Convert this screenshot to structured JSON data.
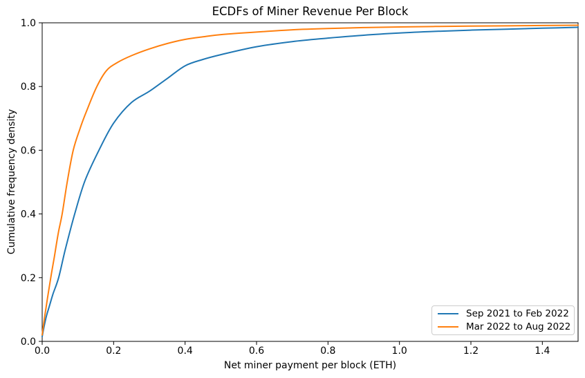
{
  "figure": {
    "title": "ECDFs of Miner Revenue Per Block"
  },
  "chart_data": {
    "type": "line",
    "title": "ECDFs of Miner Revenue Per Block",
    "xlabel": "Net miner payment per block (ETH)",
    "ylabel": "Cumulative frequency density",
    "xlim": [
      0.0,
      1.5
    ],
    "ylim": [
      0.0,
      1.0
    ],
    "x_ticks": [
      "0.0",
      "0.2",
      "0.4",
      "0.6",
      "0.8",
      "1.0",
      "1.2",
      "1.4"
    ],
    "y_ticks": [
      "0.0",
      "0.2",
      "0.4",
      "0.6",
      "0.8",
      "1.0"
    ],
    "grid": false,
    "background": "#ffffff",
    "legend": {
      "position": "lower right",
      "entries": [
        "Sep 2021 to Feb 2022",
        "Mar 2022 to Aug 2022"
      ]
    },
    "series": [
      {
        "name": "Sep 2021 to Feb 2022",
        "color": "#1f77b4",
        "x": [
          0.0,
          0.005,
          0.012,
          0.02,
          0.03,
          0.046,
          0.065,
          0.091,
          0.12,
          0.159,
          0.2,
          0.25,
          0.3,
          0.35,
          0.4,
          0.45,
          0.5,
          0.6,
          0.7,
          0.8,
          0.9,
          1.0,
          1.1,
          1.2,
          1.3,
          1.4,
          1.5
        ],
        "y": [
          0.015,
          0.045,
          0.08,
          0.11,
          0.148,
          0.2,
          0.29,
          0.4,
          0.505,
          0.6,
          0.685,
          0.75,
          0.785,
          0.825,
          0.865,
          0.885,
          0.9,
          0.925,
          0.941,
          0.952,
          0.961,
          0.968,
          0.973,
          0.977,
          0.98,
          0.983,
          0.986
        ]
      },
      {
        "name": "Mar 2022 to Aug 2022",
        "color": "#ff7f0e",
        "x": [
          0.0,
          0.005,
          0.01,
          0.018,
          0.026,
          0.034,
          0.045,
          0.056,
          0.07,
          0.087,
          0.105,
          0.125,
          0.153,
          0.18,
          0.21,
          0.25,
          0.3,
          0.35,
          0.4,
          0.45,
          0.5,
          0.6,
          0.7,
          0.8,
          0.9,
          1.0,
          1.1,
          1.2,
          1.3,
          1.4,
          1.5
        ],
        "y": [
          0.02,
          0.062,
          0.1,
          0.158,
          0.213,
          0.265,
          0.34,
          0.4,
          0.5,
          0.6,
          0.665,
          0.725,
          0.8,
          0.85,
          0.875,
          0.897,
          0.918,
          0.935,
          0.948,
          0.956,
          0.963,
          0.971,
          0.978,
          0.982,
          0.985,
          0.987,
          0.9885,
          0.9895,
          0.9905,
          0.9915,
          0.9925
        ]
      }
    ]
  }
}
